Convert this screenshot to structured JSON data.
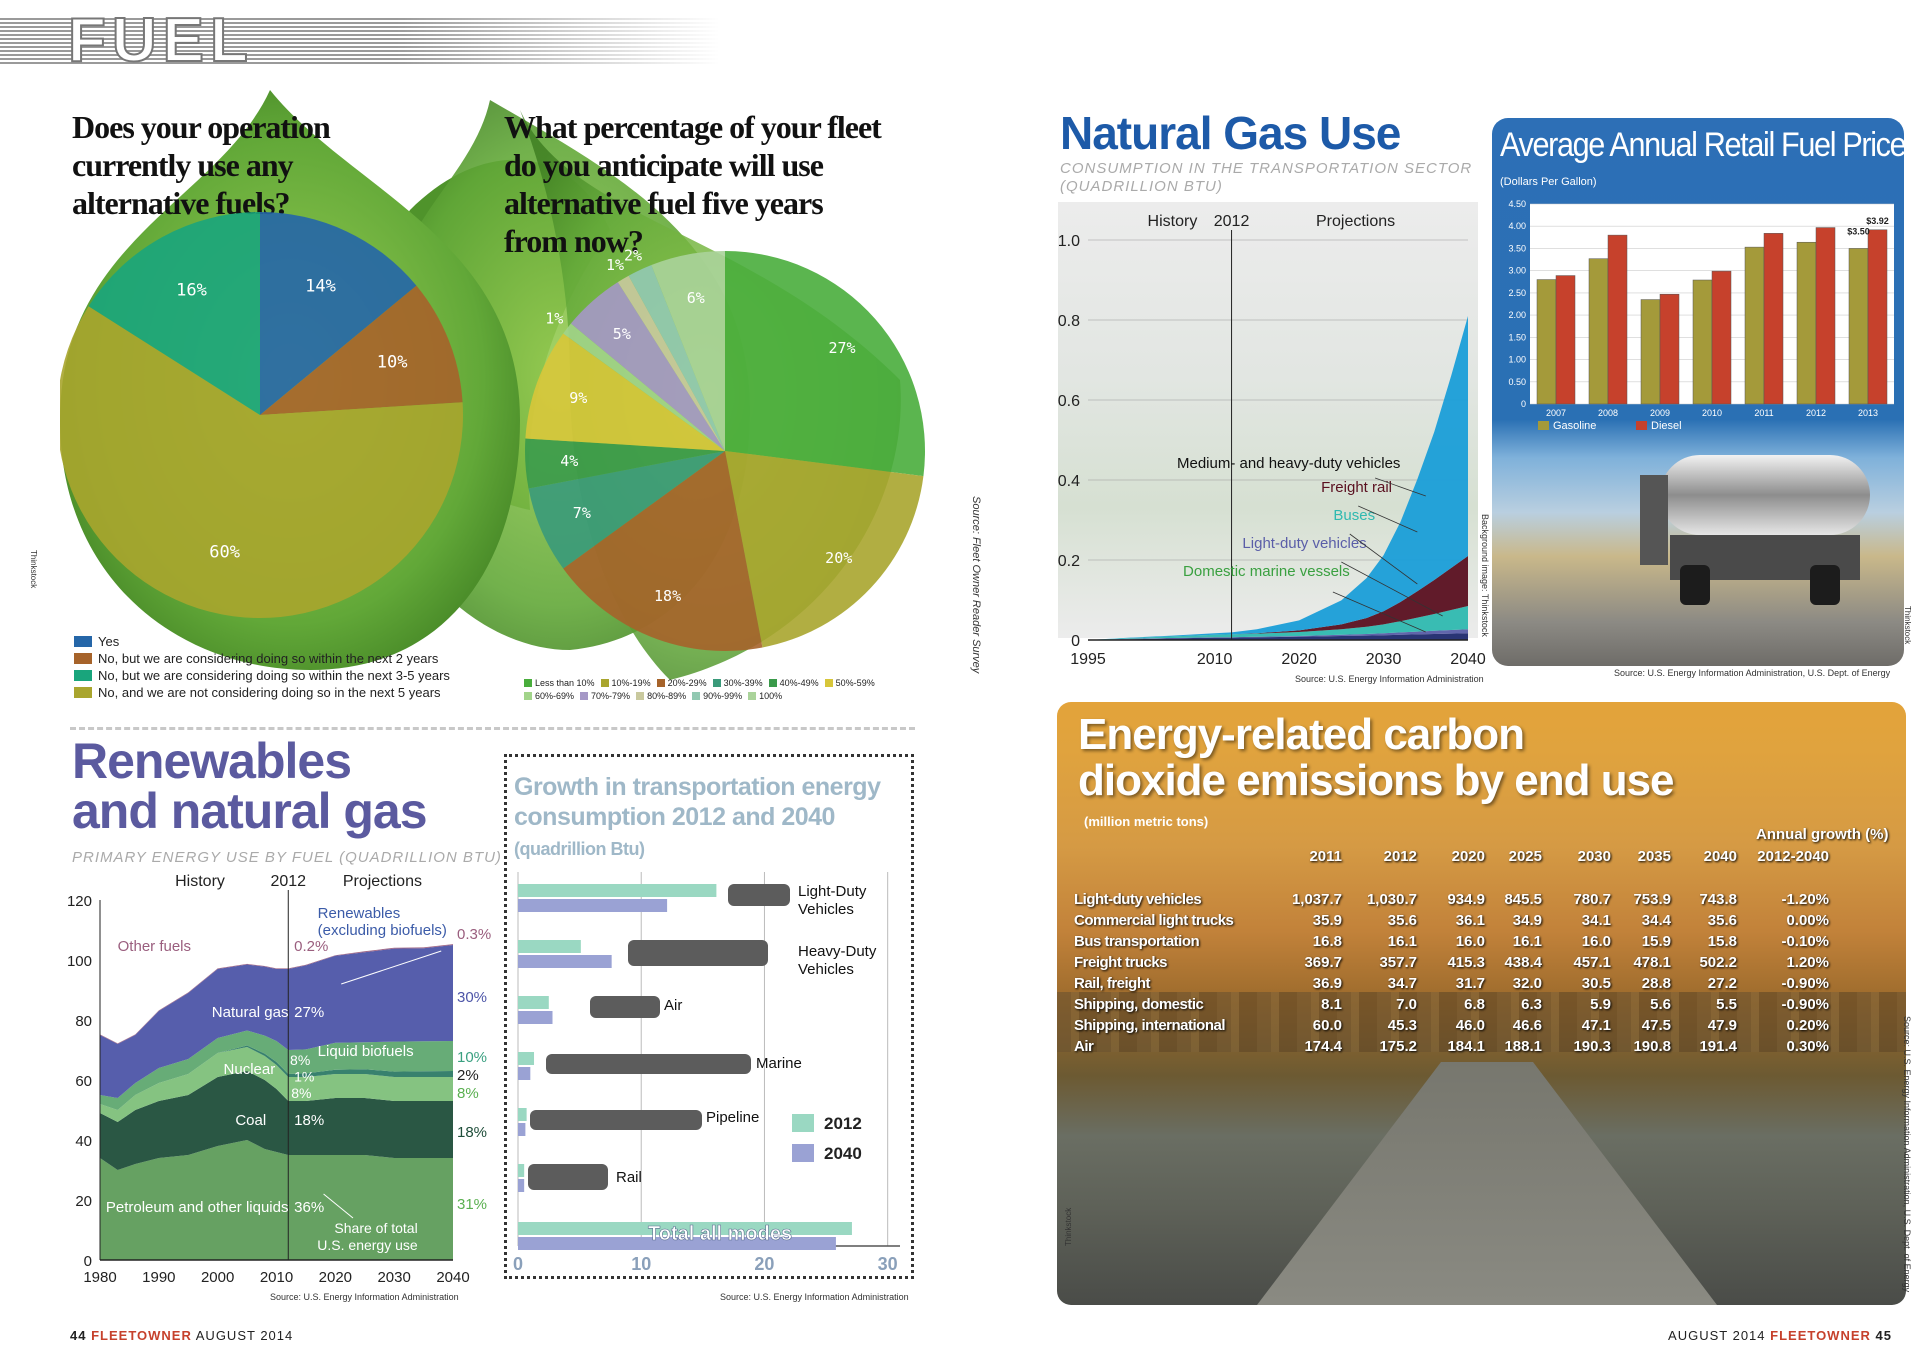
{
  "header": {
    "section": "FUEL"
  },
  "footer": {
    "left_page": "44",
    "left_brand": "FLEETOWNER",
    "left_date": "AUGUST 2014",
    "right_date": "AUGUST 2014",
    "right_brand": "FLEETOWNER",
    "right_page": "45"
  },
  "credits": {
    "thinkstock": "Thinkstock",
    "background": "Background image: Thinkstock"
  },
  "colors": {
    "blue": "#2566a8",
    "brown": "#a6632a",
    "teal": "#19a57c",
    "olive": "#a9a52e",
    "orange_panel": "#e3a33a",
    "purple": "#5a5ea8"
  },
  "chart_data": [
    {
      "id": "pie1",
      "type": "pie",
      "title": "Does your operation currently use any alternative fuels?",
      "slices": [
        {
          "label": "Yes",
          "value": 14,
          "pct": "14%",
          "color": "#2566a8"
        },
        {
          "label": "No, but we are considering doing so within the next 2 years",
          "value": 10,
          "pct": "10%",
          "color": "#a6632a"
        },
        {
          "label": "No, and we are not considering doing so in the next 5 years",
          "value": 60,
          "pct": "60%",
          "color": "#a9a52e"
        },
        {
          "label": "No, but we are considering doing so within the next 3-5 years",
          "value": 16,
          "pct": "16%",
          "color": "#19a57c"
        }
      ],
      "legend": [
        {
          "label": "Yes",
          "color": "#2566a8"
        },
        {
          "label": "No, but we are considering doing so within the next 2 years",
          "color": "#a6632a"
        },
        {
          "label": "No, but we are considering doing so within the next 3-5 years",
          "color": "#19a57c"
        },
        {
          "label": "No, and we are not considering doing so in the next 5 years",
          "color": "#a9a52e"
        }
      ]
    },
    {
      "id": "pie2",
      "type": "pie",
      "title": "What percentage of your fleet do you anticipate will use alternative fuel five years from now?",
      "source": "Source: Fleet Owner Reader Survey",
      "slices": [
        {
          "label": "Less than 10%",
          "value": 27,
          "pct": "27%",
          "color": "#49ad3c"
        },
        {
          "label": "10%-19%",
          "value": 20,
          "pct": "20%",
          "color": "#a9a52e"
        },
        {
          "label": "20%-29%",
          "value": 18,
          "pct": "18%",
          "color": "#a6632a"
        },
        {
          "label": "30%-39%",
          "value": 7,
          "pct": "7%",
          "color": "#3a9a7a"
        },
        {
          "label": "40%-49%",
          "value": 4,
          "pct": "4%",
          "color": "#3a9a4a"
        },
        {
          "label": "50%-59%",
          "value": 9,
          "pct": "9%",
          "color": "#d7c63a"
        },
        {
          "label": "60%-69%",
          "value": 1,
          "pct": "1%",
          "color": "#a2d48a"
        },
        {
          "label": "70%-79%",
          "value": 5,
          "pct": "5%",
          "color": "#a598c6"
        },
        {
          "label": "80%-89%",
          "value": 1,
          "pct": "1%",
          "color": "#c9c99e"
        },
        {
          "label": "90%-99%",
          "value": 2,
          "pct": "2%",
          "color": "#92c9b2"
        },
        {
          "label": "100%",
          "value": 6,
          "pct": "6%",
          "color": "#aad39a"
        }
      ],
      "legend": [
        {
          "label": "Less than 10%",
          "color": "#49ad3c"
        },
        {
          "label": "10%-19%",
          "color": "#a9a52e"
        },
        {
          "label": "20%-29%",
          "color": "#a6632a"
        },
        {
          "label": "30%-39%",
          "color": "#3a9a7a"
        },
        {
          "label": "40%-49%",
          "color": "#3a9a4a"
        },
        {
          "label": "50%-59%",
          "color": "#d7c63a"
        },
        {
          "label": "60%-69%",
          "color": "#a2d48a"
        },
        {
          "label": "70%-79%",
          "color": "#a598c6"
        },
        {
          "label": "80%-89%",
          "color": "#c9c99e"
        },
        {
          "label": "90%-99%",
          "color": "#92c9b2"
        },
        {
          "label": "100%",
          "color": "#aad39a"
        }
      ]
    },
    {
      "id": "natgas",
      "type": "area",
      "title": "Natural Gas Use",
      "subtitle": "CONSUMPTION IN THE TRANSPORTATION SECTOR (QUADRILLION BTU)",
      "source": "Source: U.S. Energy Information Administration",
      "history_label": "History",
      "split_label": "2012",
      "projection_label": "Projections",
      "x_ticks": [
        1995,
        2010,
        2020,
        2030,
        2040
      ],
      "y_ticks": [
        "0",
        "0.2",
        "0.4",
        "0.6",
        "0.8",
        "1.0"
      ],
      "xlim": [
        1995,
        2040
      ],
      "ylim": [
        0,
        1.0
      ],
      "x": [
        1995,
        2000,
        2005,
        2010,
        2012,
        2015,
        2020,
        2025,
        2028,
        2030,
        2032,
        2034,
        2036,
        2038,
        2040
      ],
      "series": [
        {
          "name": "Domestic marine vessels",
          "color": "#1f2a6e",
          "values": [
            0,
            0.002,
            0.004,
            0.006,
            0.006,
            0.007,
            0.008,
            0.01,
            0.011,
            0.012,
            0.013,
            0.014,
            0.015,
            0.016,
            0.017
          ]
        },
        {
          "name": "Light-duty vehicles",
          "color": "#5a5ea8",
          "values": [
            0,
            0.001,
            0.001,
            0.001,
            0.001,
            0.001,
            0.002,
            0.003,
            0.004,
            0.005,
            0.006,
            0.007,
            0.008,
            0.009,
            0.01
          ]
        },
        {
          "name": "Buses",
          "color": "#2fb9b0",
          "values": [
            0,
            0.002,
            0.004,
            0.006,
            0.007,
            0.008,
            0.01,
            0.014,
            0.018,
            0.022,
            0.028,
            0.035,
            0.042,
            0.05,
            0.058
          ]
        },
        {
          "name": "Freight rail",
          "color": "#5a1020",
          "values": [
            0,
            0,
            0,
            0,
            0,
            0.001,
            0.004,
            0.012,
            0.022,
            0.033,
            0.048,
            0.066,
            0.085,
            0.105,
            0.125
          ]
        },
        {
          "name": "Medium- and heavy-duty vehicles",
          "color": "#1a9ed8",
          "values": [
            0,
            0.001,
            0.002,
            0.004,
            0.005,
            0.01,
            0.025,
            0.06,
            0.1,
            0.14,
            0.2,
            0.28,
            0.37,
            0.48,
            0.6
          ]
        }
      ]
    },
    {
      "id": "prices",
      "type": "bar",
      "title": "Average Annual Retail Fuel Prices",
      "subtitle": "(Dollars Per Gallon)",
      "source": "Source: U.S. Energy Information Administration, U.S. Dept. of Energy",
      "categories": [
        "2007",
        "2008",
        "2009",
        "2010",
        "2011",
        "2012",
        "2013"
      ],
      "y_ticks": [
        "0",
        "0.50",
        "1.00",
        "1.50",
        "2.00",
        "2.50",
        "3.00",
        "3.50",
        "4.00",
        "4.50"
      ],
      "ylim": [
        0,
        4.5
      ],
      "series": [
        {
          "name": "Gasoline",
          "color": "#a49a3a",
          "values": [
            2.8,
            3.27,
            2.35,
            2.79,
            3.53,
            3.64,
            3.5
          ]
        },
        {
          "name": "Diesel",
          "color": "#c6412c",
          "values": [
            2.89,
            3.8,
            2.47,
            2.99,
            3.84,
            3.97,
            3.92
          ]
        }
      ],
      "labels": [
        {
          "index": 6,
          "series": 0,
          "text": "$3.50"
        },
        {
          "index": 6,
          "series": 1,
          "text": "$3.92"
        }
      ]
    },
    {
      "id": "renew",
      "type": "area",
      "title": "Renewables and natural gas",
      "subtitle": "PRIMARY ENERGY USE BY FUEL (QUADRILLION BTU)",
      "source": "Source: U.S. Energy Information Administration",
      "history_label": "History",
      "split_label": "2012",
      "projection_label": "Projections",
      "x_ticks": [
        1980,
        1990,
        2000,
        2010,
        2020,
        2030,
        2040
      ],
      "y_ticks": [
        "0",
        "20",
        "40",
        "60",
        "80",
        "100",
        "120"
      ],
      "xlim": [
        1980,
        2040
      ],
      "ylim": [
        0,
        120
      ],
      "x": [
        1980,
        1983,
        1986,
        1990,
        1995,
        2000,
        2005,
        2008,
        2010,
        2012,
        2015,
        2020,
        2025,
        2030,
        2035,
        2040
      ],
      "series": [
        {
          "name": "Petroleum and other liquids",
          "color": "#5e9c5a",
          "values": [
            34,
            30,
            32,
            34,
            35,
            38,
            40,
            37,
            36,
            35,
            35,
            35,
            35,
            34,
            34,
            34
          ]
        },
        {
          "name": "Coal",
          "color": "#1f4e3a",
          "values": [
            15,
            16,
            18,
            19,
            20,
            23,
            23,
            23,
            21,
            18,
            18,
            19,
            19,
            19,
            19,
            19
          ]
        },
        {
          "name": "Nuclear",
          "color": "#7ec07a",
          "values": [
            3,
            4,
            5,
            6,
            7,
            8,
            8,
            8,
            8,
            8,
            8,
            8,
            8,
            8,
            8,
            8
          ]
        },
        {
          "name": "Liquid biofuels",
          "color": "#2d7a66",
          "values": [
            0,
            0,
            0,
            0,
            0,
            0,
            0.5,
            0.8,
            1,
            1,
            1.2,
            1.4,
            1.6,
            1.8,
            1.9,
            2
          ]
        },
        {
          "name": "Renewables (excluding biofuels)",
          "color": "#5fa870",
          "values": [
            3,
            4,
            4,
            5,
            5,
            5,
            5,
            6,
            7,
            8,
            8,
            9,
            9,
            10,
            10,
            10
          ]
        },
        {
          "name": "Natural gas",
          "color": "#4d55a8",
          "values": [
            20,
            18,
            16,
            19,
            22,
            23,
            22,
            23,
            24,
            27,
            28,
            29,
            30,
            31,
            31,
            32
          ]
        },
        {
          "name": "Other fuels",
          "color": "#9a5e7e",
          "values": [
            0.2,
            0.2,
            0.2,
            0.2,
            0.2,
            0.2,
            0.2,
            0.2,
            0.2,
            0.2,
            0.2,
            0.2,
            0.3,
            0.3,
            0.3,
            0.3
          ]
        }
      ],
      "labels": {
        "other_fuels": "Other fuels",
        "renewables": "Renewables\n(excluding biofuels)",
        "natural_gas": "Natural gas",
        "natural_gas_pct": "27%",
        "liquid_biofuels": "Liquid biofuels",
        "nuclear": "Nuclear",
        "coal": "Coal",
        "coal_pct": "18%",
        "petroleum": "Petroleum and other liquids",
        "petroleum_pct": "36%",
        "renew_2012": "8%",
        "bio_2012": "1%",
        "nuc_2012": "8%",
        "other_2012": "0.2%",
        "share": "Share of total\nU.S. energy use",
        "right_other": "0.3%",
        "right_gas": "30%",
        "right_renew": "10%",
        "right_bio": "2%",
        "right_nuc": "8%",
        "right_coal": "18%",
        "right_pet": "31%"
      }
    },
    {
      "id": "growth",
      "type": "bar",
      "orientation": "horizontal",
      "title": "Growth in transportation energy consumption 2012 and 2040",
      "title_unit": "(quadrillion Btu)",
      "source": "Source: U.S. Energy Information Administration",
      "categories": [
        "Light-Duty Vehicles",
        "Heavy-Duty Vehicles",
        "Air",
        "Marine",
        "Pipeline",
        "Rail",
        "Total all modes"
      ],
      "x_ticks": [
        "0",
        "10",
        "20",
        "30"
      ],
      "xlim": [
        0,
        31
      ],
      "series": [
        {
          "name": "2012",
          "color": "#9ad8c2",
          "values": [
            16.1,
            5.1,
            2.5,
            1.3,
            0.7,
            0.5,
            27.1
          ]
        },
        {
          "name": "2040",
          "color": "#9aa2d4",
          "values": [
            12.1,
            7.6,
            2.8,
            1.0,
            0.6,
            0.5,
            25.8
          ]
        }
      ]
    },
    {
      "id": "co2",
      "type": "table",
      "title": "Energy-related carbon dioxide emissions by end use",
      "subtitle": "(million metric tons)",
      "source": "Source: U.S. Energy Information Administration, U.S. Dept. of Energy",
      "growth_header": "Annual growth (%)",
      "columns": [
        "",
        "2011",
        "2012",
        "2020",
        "2025",
        "2030",
        "2035",
        "2040",
        "2012-2040"
      ],
      "rows": [
        [
          "Light-duty vehicles",
          "1,037.7",
          "1,030.7",
          "934.9",
          "845.5",
          "780.7",
          "753.9",
          "743.8",
          "-1.20%"
        ],
        [
          "Commercial light trucks",
          "35.9",
          "35.6",
          "36.1",
          "34.9",
          "34.1",
          "34.4",
          "35.6",
          "0.00%"
        ],
        [
          "Bus transportation",
          "16.8",
          "16.1",
          "16.0",
          "16.1",
          "16.0",
          "15.9",
          "15.8",
          "-0.10%"
        ],
        [
          "Freight trucks",
          "369.7",
          "357.7",
          "415.3",
          "438.4",
          "457.1",
          "478.1",
          "502.2",
          "1.20%"
        ],
        [
          "Rail, freight",
          "36.9",
          "34.7",
          "31.7",
          "32.0",
          "30.5",
          "28.8",
          "27.2",
          "-0.90%"
        ],
        [
          "Shipping, domestic",
          "8.1",
          "7.0",
          "6.8",
          "6.3",
          "5.9",
          "5.6",
          "5.5",
          "-0.90%"
        ],
        [
          "Shipping, international",
          "60.0",
          "45.3",
          "46.0",
          "46.6",
          "47.1",
          "47.5",
          "47.9",
          "0.20%"
        ],
        [
          "Air",
          "174.4",
          "175.2",
          "184.1",
          "188.1",
          "190.3",
          "190.8",
          "191.4",
          "0.30%"
        ]
      ]
    }
  ]
}
